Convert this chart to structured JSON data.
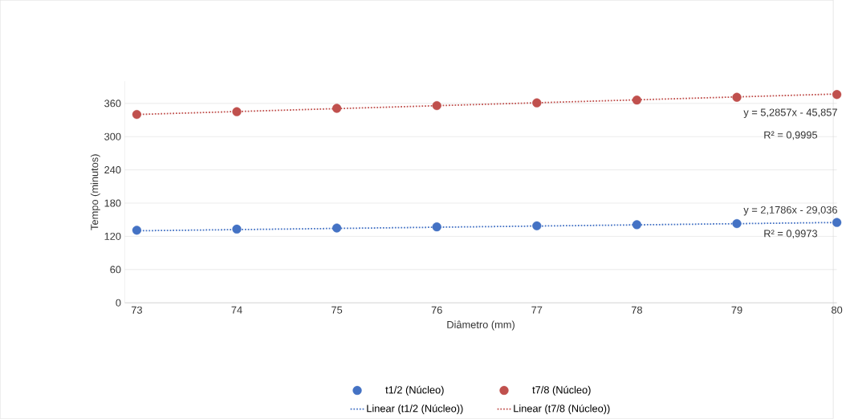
{
  "chart_data": {
    "type": "scatter",
    "xlabel": "Diâmetro (mm)",
    "ylabel": "Tempo (minutos)",
    "xlim": [
      72.88,
      80
    ],
    "xticks": [
      73,
      74,
      75,
      76,
      77,
      78,
      79,
      80
    ],
    "ylim": [
      0,
      400
    ],
    "yticks": [
      0,
      60,
      120,
      180,
      240,
      300,
      360
    ],
    "grid": "y",
    "legend": "bottom",
    "marker": "circle",
    "series": [
      {
        "name": "t1/2 (Núcleo)",
        "color": "#4472c4",
        "x": [
          73,
          74,
          75,
          76,
          77,
          78,
          79,
          80
        ],
        "values": [
          131,
          133,
          135,
          137,
          139,
          141,
          143,
          145
        ]
      },
      {
        "name": "t7/8 (Núcleo)",
        "color": "#c0504d",
        "x": [
          73,
          74,
          75,
          76,
          77,
          78,
          79,
          80
        ],
        "values": [
          340,
          345,
          351,
          356,
          361,
          366,
          371,
          376
        ]
      },
      {
        "name": "Linear (t1/2 (Núcleo))",
        "type": "line",
        "marker": "none",
        "line_style": "dotted",
        "color": "#4472c4",
        "x": [
          73,
          80
        ],
        "values": [
          130,
          145
        ]
      },
      {
        "name": "Linear (t7/8 (Núcleo))",
        "type": "line",
        "marker": "none",
        "line_style": "dotted",
        "color": "#c0504d",
        "x": [
          73,
          80
        ],
        "values": [
          340,
          377
        ]
      }
    ],
    "annotations": [
      "y = 5,2857x - 45,857",
      "R² = 0,9995",
      "y = 2,1786x - 29,036",
      "R² = 0,9973"
    ]
  }
}
